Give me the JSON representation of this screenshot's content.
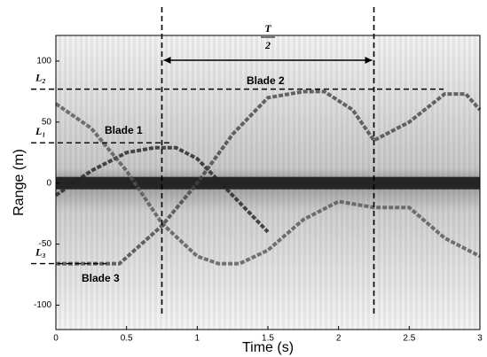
{
  "chart_data": {
    "type": "line",
    "xlabel": "Time (s)",
    "ylabel": "Range (m)",
    "xlim": [
      0,
      3
    ],
    "ylim": [
      -120,
      121
    ],
    "xticks": [
      0,
      0.5,
      1,
      1.5,
      2,
      2.5,
      3
    ],
    "yticks": [
      -100,
      -50,
      0,
      50,
      100
    ],
    "series": [
      {
        "name": "Blade 1",
        "color": "#222222",
        "x": [
          0,
          0.25,
          0.5,
          0.7,
          0.75,
          0.85,
          1.0,
          1.25,
          1.5
        ],
        "values": [
          -10,
          10,
          25,
          29,
          29,
          29,
          20,
          -10,
          -40
        ]
      },
      {
        "name": "Blade 2",
        "color": "#555555",
        "x": [
          0,
          0.25,
          0.5,
          0.75,
          1.0,
          1.15,
          1.3,
          1.5,
          1.75,
          2.0,
          2.25,
          2.5,
          2.75,
          3
        ],
        "values": [
          65,
          45,
          10,
          -33,
          -60,
          -66,
          -66,
          -55,
          -30,
          -15,
          -20,
          -20,
          -45,
          -60
        ]
      },
      {
        "name": "Blade 3",
        "color": "#444444",
        "x": [
          0,
          0.2,
          0.45,
          0.75,
          1.0,
          1.25,
          1.5,
          1.75,
          1.9,
          2.1,
          2.25,
          2.5,
          2.75,
          2.9,
          3
        ],
        "values": [
          -66,
          -66,
          -66,
          -35,
          0,
          40,
          70,
          75,
          75,
          60,
          35,
          50,
          73,
          73,
          60
        ]
      }
    ],
    "annotations": {
      "vlines": [
        0.75,
        2.25
      ],
      "period_numerator": "T",
      "period_denominator": "2",
      "hlines": [
        {
          "label": "L₂",
          "value": 77
        },
        {
          "label": "L₁",
          "value": 33
        },
        {
          "label": "L₃",
          "value": -66
        }
      ]
    }
  }
}
